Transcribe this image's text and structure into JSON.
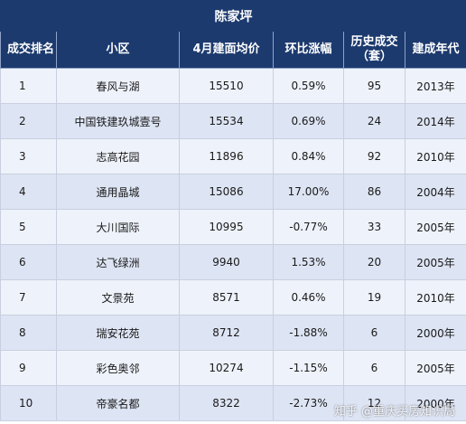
{
  "title": "陈家坪",
  "columns": [
    "成交排名",
    "小区",
    "4月建面均价",
    "环比涨幅",
    "历史成交\n（套）",
    "建成年代"
  ],
  "rows": [
    [
      "1",
      "春风与湖",
      "15510",
      "0.59%",
      "95",
      "2013年"
    ],
    [
      "2",
      "中国铁建玖城壹号",
      "15534",
      "0.69%",
      "24",
      "2014年"
    ],
    [
      "3",
      "志高花园",
      "11896",
      "0.84%",
      "92",
      "2010年"
    ],
    [
      "4",
      "通用晶城",
      "15086",
      "17.00%",
      "86",
      "2004年"
    ],
    [
      "5",
      "大川国际",
      "10995",
      "-0.77%",
      "33",
      "2005年"
    ],
    [
      "6",
      "达飞绿洲",
      "9940",
      "1.53%",
      "20",
      "2005年"
    ],
    [
      "7",
      "文景苑",
      "8571",
      "0.46%",
      "19",
      "2010年"
    ],
    [
      "8",
      "瑞安花苑",
      "8712",
      "-1.88%",
      "6",
      "2000年"
    ],
    [
      "9",
      "彩色奥邻",
      "10274",
      "-1.15%",
      "6",
      "2005年"
    ],
    [
      "10",
      "帝豪名都",
      "8322",
      "-2.73%",
      "12",
      "2000年"
    ]
  ],
  "watermark": "知乎 @重庆买房知识局"
}
